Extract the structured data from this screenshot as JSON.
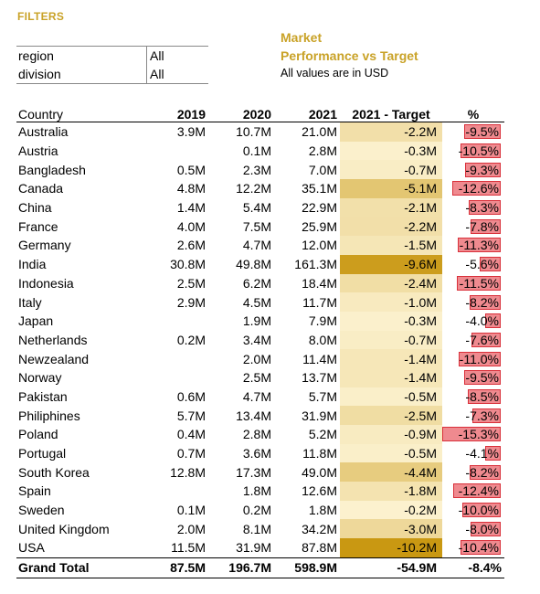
{
  "filters": {
    "title": "FILTERS",
    "rows": [
      {
        "label": "region",
        "value": "All"
      },
      {
        "label": "division",
        "value": "All"
      }
    ]
  },
  "report": {
    "title_line1": "Market",
    "title_line2": "Performance vs Target",
    "subtitle": "All values are in USD"
  },
  "table": {
    "headers": {
      "country": "Country",
      "y2019": "2019",
      "y2020": "2020",
      "y2021": "2021",
      "target": "2021 - Target",
      "pct": "%"
    },
    "colors": {
      "target_light": "#fdf3d2",
      "target_dark": "#c99812",
      "pct_bar_fill": "#ef8a8f",
      "pct_bar_border": "#d9303a"
    },
    "rows": [
      {
        "country": "Australia",
        "y2019": "3.9M",
        "y2020": "10.7M",
        "y2021": "21.0M",
        "target": "-2.2M",
        "target_num": -2.2,
        "pct": "-9.5%",
        "pct_num": 9.5
      },
      {
        "country": "Austria",
        "y2019": "",
        "y2020": "0.1M",
        "y2021": "2.8M",
        "target": "-0.3M",
        "target_num": -0.3,
        "pct": "-10.5%",
        "pct_num": 10.5
      },
      {
        "country": "Bangladesh",
        "y2019": "0.5M",
        "y2020": "2.3M",
        "y2021": "7.0M",
        "target": "-0.7M",
        "target_num": -0.7,
        "pct": "-9.3%",
        "pct_num": 9.3
      },
      {
        "country": "Canada",
        "y2019": "4.8M",
        "y2020": "12.2M",
        "y2021": "35.1M",
        "target": "-5.1M",
        "target_num": -5.1,
        "pct": "-12.6%",
        "pct_num": 12.6
      },
      {
        "country": "China",
        "y2019": "1.4M",
        "y2020": "5.4M",
        "y2021": "22.9M",
        "target": "-2.1M",
        "target_num": -2.1,
        "pct": "-8.3%",
        "pct_num": 8.3
      },
      {
        "country": "France",
        "y2019": "4.0M",
        "y2020": "7.5M",
        "y2021": "25.9M",
        "target": "-2.2M",
        "target_num": -2.2,
        "pct": "-7.8%",
        "pct_num": 7.8
      },
      {
        "country": "Germany",
        "y2019": "2.6M",
        "y2020": "4.7M",
        "y2021": "12.0M",
        "target": "-1.5M",
        "target_num": -1.5,
        "pct": "-11.3%",
        "pct_num": 11.3
      },
      {
        "country": "India",
        "y2019": "30.8M",
        "y2020": "49.8M",
        "y2021": "161.3M",
        "target": "-9.6M",
        "target_num": -9.6,
        "pct": "-5.6%",
        "pct_num": 5.6
      },
      {
        "country": "Indonesia",
        "y2019": "2.5M",
        "y2020": "6.2M",
        "y2021": "18.4M",
        "target": "-2.4M",
        "target_num": -2.4,
        "pct": "-11.5%",
        "pct_num": 11.5
      },
      {
        "country": "Italy",
        "y2019": "2.9M",
        "y2020": "4.5M",
        "y2021": "11.7M",
        "target": "-1.0M",
        "target_num": -1.0,
        "pct": "-8.2%",
        "pct_num": 8.2
      },
      {
        "country": "Japan",
        "y2019": "",
        "y2020": "1.9M",
        "y2021": "7.9M",
        "target": "-0.3M",
        "target_num": -0.3,
        "pct": "-4.0%",
        "pct_num": 4.0
      },
      {
        "country": "Netherlands",
        "y2019": "0.2M",
        "y2020": "3.4M",
        "y2021": "8.0M",
        "target": "-0.7M",
        "target_num": -0.7,
        "pct": "-7.6%",
        "pct_num": 7.6
      },
      {
        "country": "Newzealand",
        "y2019": "",
        "y2020": "2.0M",
        "y2021": "11.4M",
        "target": "-1.4M",
        "target_num": -1.4,
        "pct": "-11.0%",
        "pct_num": 11.0
      },
      {
        "country": "Norway",
        "y2019": "",
        "y2020": "2.5M",
        "y2021": "13.7M",
        "target": "-1.4M",
        "target_num": -1.4,
        "pct": "-9.5%",
        "pct_num": 9.5
      },
      {
        "country": "Pakistan",
        "y2019": "0.6M",
        "y2020": "4.7M",
        "y2021": "5.7M",
        "target": "-0.5M",
        "target_num": -0.5,
        "pct": "-8.5%",
        "pct_num": 8.5
      },
      {
        "country": "Philiphines",
        "y2019": "5.7M",
        "y2020": "13.4M",
        "y2021": "31.9M",
        "target": "-2.5M",
        "target_num": -2.5,
        "pct": "-7.3%",
        "pct_num": 7.3
      },
      {
        "country": "Poland",
        "y2019": "0.4M",
        "y2020": "2.8M",
        "y2021": "5.2M",
        "target": "-0.9M",
        "target_num": -0.9,
        "pct": "-15.3%",
        "pct_num": 15.3
      },
      {
        "country": "Portugal",
        "y2019": "0.7M",
        "y2020": "3.6M",
        "y2021": "11.8M",
        "target": "-0.5M",
        "target_num": -0.5,
        "pct": "-4.1%",
        "pct_num": 4.1
      },
      {
        "country": "South Korea",
        "y2019": "12.8M",
        "y2020": "17.3M",
        "y2021": "49.0M",
        "target": "-4.4M",
        "target_num": -4.4,
        "pct": "-8.2%",
        "pct_num": 8.2
      },
      {
        "country": "Spain",
        "y2019": "",
        "y2020": "1.8M",
        "y2021": "12.6M",
        "target": "-1.8M",
        "target_num": -1.8,
        "pct": "-12.4%",
        "pct_num": 12.4
      },
      {
        "country": "Sweden",
        "y2019": "0.1M",
        "y2020": "0.2M",
        "y2021": "1.8M",
        "target": "-0.2M",
        "target_num": -0.2,
        "pct": "-10.0%",
        "pct_num": 10.0
      },
      {
        "country": "United Kingdom",
        "y2019": "2.0M",
        "y2020": "8.1M",
        "y2021": "34.2M",
        "target": "-3.0M",
        "target_num": -3.0,
        "pct": "-8.0%",
        "pct_num": 8.0
      },
      {
        "country": "USA",
        "y2019": "11.5M",
        "y2020": "31.9M",
        "y2021": "87.8M",
        "target": "-10.2M",
        "target_num": -10.2,
        "pct": "-10.4%",
        "pct_num": 10.4
      }
    ],
    "total": {
      "label": "Grand Total",
      "y2019": "87.5M",
      "y2020": "196.7M",
      "y2021": "598.9M",
      "target": "-54.9M",
      "pct": "-8.4%"
    }
  }
}
